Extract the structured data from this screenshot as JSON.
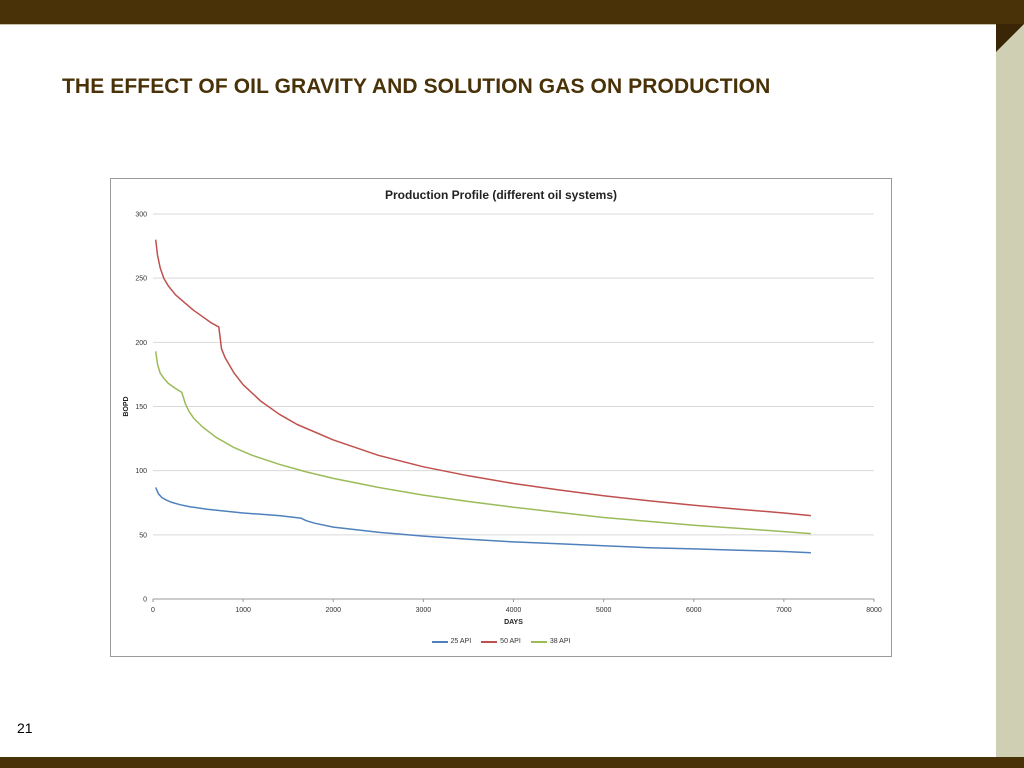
{
  "slide": {
    "title": "THE EFFECT OF OIL GRAVITY AND SOLUTION GAS ON PRODUCTION",
    "page_number": "21"
  },
  "colors": {
    "frame_brown": "#4a3208",
    "band_sage": "#cfcfb4",
    "title_color": "#4a3208"
  },
  "chart_data": {
    "type": "line",
    "title": "Production Profile (different oil systems)",
    "xlabel": "DAYS",
    "ylabel": "BOPD",
    "xlim": [
      0,
      8000
    ],
    "ylim": [
      0,
      300
    ],
    "xticks": [
      0,
      1000,
      2000,
      3000,
      4000,
      5000,
      6000,
      7000,
      8000
    ],
    "yticks": [
      0,
      50,
      100,
      150,
      200,
      250,
      300
    ],
    "grid": "horizontal",
    "legend_position": "bottom",
    "series": [
      {
        "name": "25 API",
        "color": "#4f81bd",
        "x": [
          30,
          60,
          100,
          150,
          200,
          300,
          400,
          600,
          800,
          1000,
          1200,
          1400,
          1640,
          1700,
          1800,
          2000,
          2500,
          3000,
          3500,
          4000,
          4500,
          5000,
          5500,
          6000,
          6500,
          7000,
          7300
        ],
        "y": [
          87,
          82,
          79,
          77,
          75.5,
          73.5,
          72,
          70,
          68.5,
          67,
          66,
          65,
          63,
          61,
          59,
          56,
          52,
          49,
          46.5,
          44.5,
          43,
          41.5,
          40,
          39,
          38,
          37,
          36
        ]
      },
      {
        "name": "50 API",
        "color": "#c0504d",
        "x": [
          30,
          50,
          80,
          120,
          170,
          250,
          350,
          450,
          550,
          650,
          730,
          760,
          800,
          900,
          1000,
          1200,
          1400,
          1600,
          2000,
          2500,
          3000,
          3500,
          4000,
          4500,
          5000,
          5500,
          6000,
          6500,
          7000,
          7300
        ],
        "y": [
          280,
          268,
          258,
          250,
          244,
          237,
          231,
          225,
          220,
          215,
          212,
          195,
          188,
          176,
          167,
          154,
          144,
          136,
          124,
          112,
          103,
          96,
          90,
          85,
          80.5,
          76.5,
          73,
          70,
          67,
          65
        ]
      },
      {
        "name": "38 API",
        "color": "#9bbb59",
        "x": [
          30,
          50,
          80,
          120,
          170,
          250,
          320,
          360,
          400,
          450,
          550,
          700,
          900,
          1100,
          1400,
          1700,
          2000,
          2500,
          3000,
          3500,
          4000,
          4500,
          5000,
          5500,
          6000,
          6500,
          7000,
          7300
        ],
        "y": [
          193,
          183,
          176,
          172,
          168,
          164,
          161,
          152,
          146,
          141,
          134,
          126,
          118,
          112,
          105,
          99,
          94,
          87,
          81,
          76,
          71.5,
          67.5,
          63.5,
          60.5,
          57.5,
          55,
          52.5,
          51
        ]
      }
    ]
  }
}
